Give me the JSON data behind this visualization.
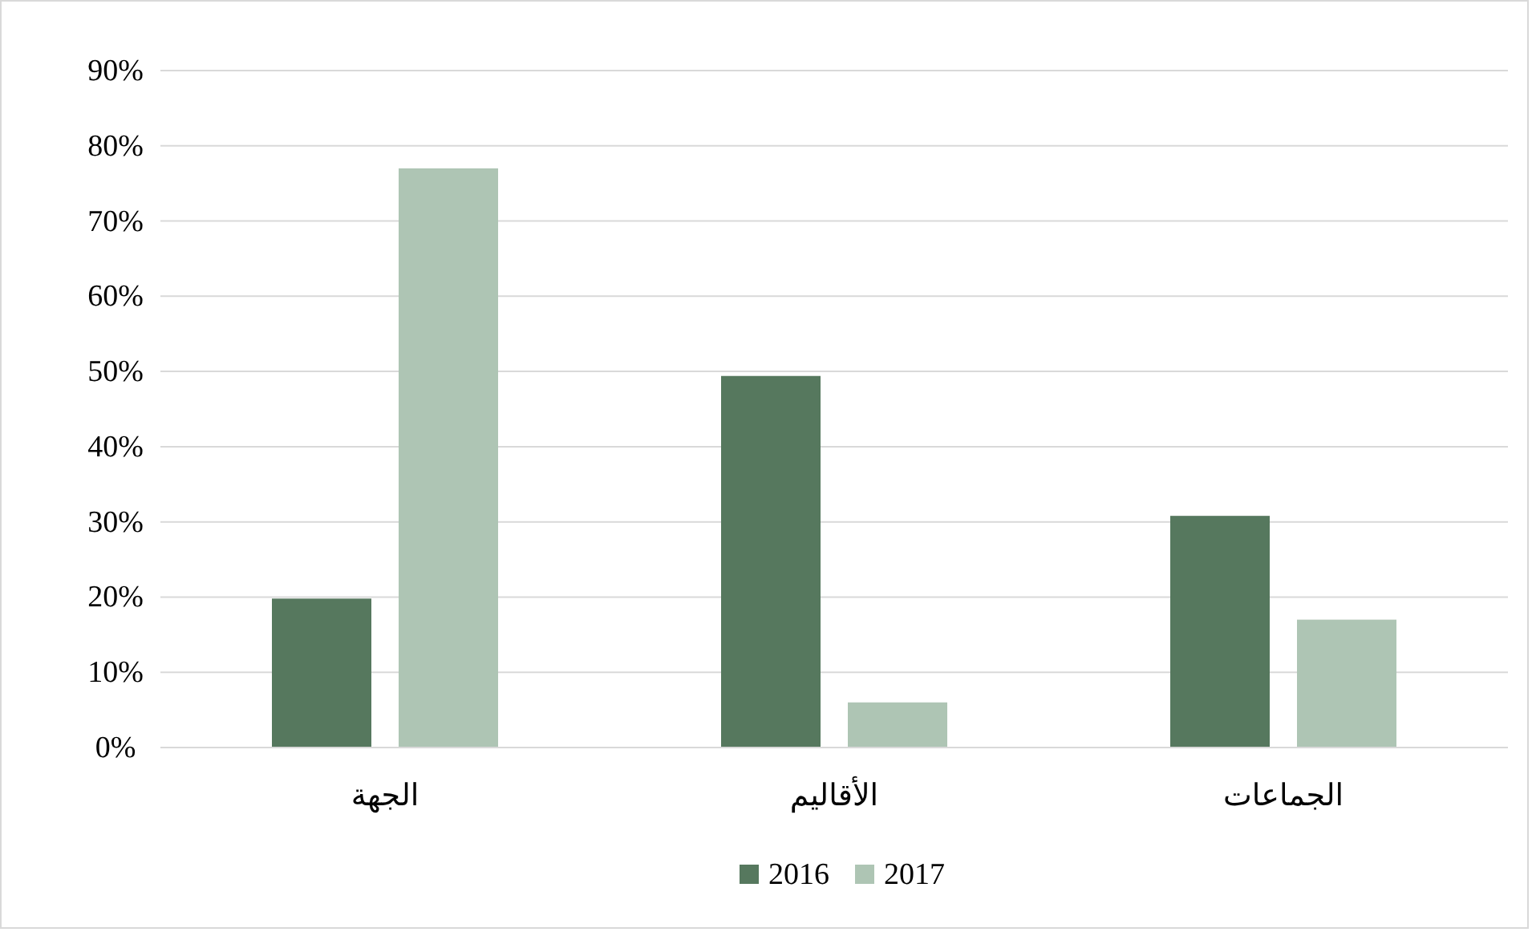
{
  "chart_data": {
    "type": "bar",
    "categories": [
      "الجهة",
      "الأقاليم",
      "الجماعات"
    ],
    "series": [
      {
        "name": "2016",
        "color": "#56785e",
        "values": [
          19.8,
          49.4,
          30.8
        ]
      },
      {
        "name": "2017",
        "color": "#aec5b4",
        "values": [
          77,
          6,
          17
        ]
      }
    ],
    "ylim": [
      0,
      90
    ],
    "yticks": [
      {
        "value": 0,
        "label": "0%"
      },
      {
        "value": 10,
        "label": "10%"
      },
      {
        "value": 20,
        "label": "20%"
      },
      {
        "value": 30,
        "label": "30%"
      },
      {
        "value": 40,
        "label": "40%"
      },
      {
        "value": 50,
        "label": "50%"
      },
      {
        "value": 60,
        "label": "60%"
      },
      {
        "value": 70,
        "label": "70%"
      },
      {
        "value": 80,
        "label": "80%"
      },
      {
        "value": 90,
        "label": "90%"
      }
    ],
    "grid": "y",
    "legend": "bottom"
  }
}
